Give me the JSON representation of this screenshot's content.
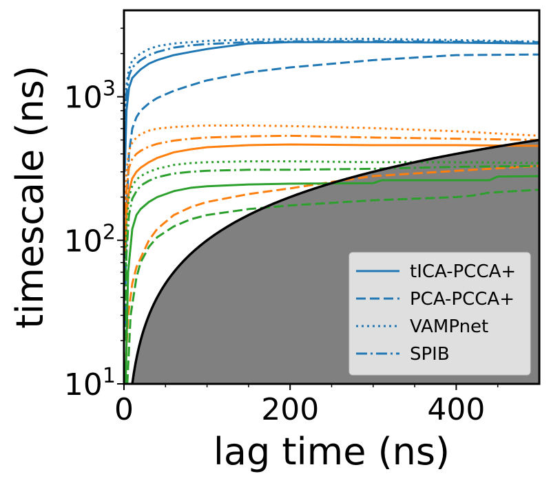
{
  "chart_data": {
    "type": "line",
    "title": "",
    "xlabel": "lag time (ns)",
    "ylabel": "timescale (ns)",
    "xlim": [
      0,
      500
    ],
    "ylim": [
      10,
      4000
    ],
    "yscale": "log",
    "xticks": [
      0,
      200,
      400
    ],
    "xtick_labels": [
      "0",
      "200",
      "400"
    ],
    "yticks": [
      10,
      100,
      1000
    ],
    "ytick_labels": [
      {
        "base": "10",
        "exp": "1"
      },
      {
        "base": "10",
        "exp": "2"
      },
      {
        "base": "10",
        "exp": "3"
      }
    ],
    "legend": {
      "position": "lower-right",
      "entries": [
        {
          "label": "tICA-PCCA+",
          "dash": "solid"
        },
        {
          "label": "PCA-PCCA+",
          "dash": "dashed"
        },
        {
          "label": "VAMPnet",
          "dash": "dotted"
        },
        {
          "label": "SPIB",
          "dash": "dashdot"
        }
      ]
    },
    "colors": {
      "blue": "#1f77b4",
      "orange": "#ff7f0e",
      "green": "#2ca02c",
      "shade": "#808080",
      "boundary": "#000000",
      "legend_bg": "#e5e5e5"
    },
    "boundary": {
      "name": "lag time = timescale",
      "x": [
        10,
        50,
        100,
        200,
        300,
        400,
        500
      ],
      "y": [
        10,
        50,
        100,
        200,
        300,
        400,
        500
      ]
    },
    "series": [
      {
        "name": "tICA-PCCA+ process 1",
        "color": "blue",
        "dash": "solid",
        "x": [
          1,
          3,
          6,
          10,
          15,
          20,
          30,
          40,
          60,
          80,
          100,
          150,
          200,
          300,
          400,
          500
        ],
        "y": [
          300,
          800,
          1150,
          1350,
          1450,
          1550,
          1700,
          1800,
          1950,
          2050,
          2150,
          2350,
          2400,
          2400,
          2380,
          2350
        ]
      },
      {
        "name": "PCA-PCCA+ process 1",
        "color": "blue",
        "dash": "dashed",
        "x": [
          1,
          3,
          6,
          10,
          15,
          20,
          30,
          40,
          60,
          80,
          100,
          150,
          200,
          300,
          400,
          500
        ],
        "y": [
          20,
          150,
          400,
          600,
          720,
          800,
          900,
          980,
          1100,
          1200,
          1300,
          1480,
          1600,
          1800,
          1950,
          1970
        ]
      },
      {
        "name": "VAMPnet process 1",
        "color": "blue",
        "dash": "dotted",
        "x": [
          1,
          3,
          6,
          10,
          15,
          20,
          30,
          40,
          60,
          80,
          100,
          150,
          200,
          300,
          400,
          500
        ],
        "y": [
          600,
          1200,
          1550,
          1800,
          1900,
          2000,
          2150,
          2250,
          2350,
          2400,
          2450,
          2500,
          2520,
          2530,
          2480,
          2420
        ]
      },
      {
        "name": "SPIB process 1",
        "color": "blue",
        "dash": "dashdot",
        "x": [
          1,
          3,
          6,
          10,
          15,
          20,
          30,
          40,
          60,
          80,
          100,
          150,
          200,
          300,
          400,
          500
        ],
        "y": [
          500,
          1050,
          1400,
          1600,
          1700,
          1800,
          1950,
          2050,
          2200,
          2280,
          2330,
          2400,
          2430,
          2440,
          2420,
          2400
        ]
      },
      {
        "name": "tICA-PCCA+ process 2",
        "color": "orange",
        "dash": "solid",
        "x": [
          1,
          3,
          6,
          10,
          15,
          20,
          30,
          40,
          60,
          80,
          100,
          150,
          200,
          300,
          400,
          500
        ],
        "y": [
          80,
          150,
          220,
          270,
          300,
          320,
          350,
          375,
          410,
          430,
          445,
          460,
          465,
          460,
          460,
          455
        ]
      },
      {
        "name": "PCA-PCCA+ process 2",
        "color": "orange",
        "dash": "dashed",
        "x": [
          1,
          5,
          10,
          15,
          20,
          30,
          40,
          60,
          80,
          100,
          150,
          200,
          250,
          300,
          400,
          500
        ],
        "y": [
          10,
          30,
          50,
          65,
          75,
          100,
          120,
          150,
          170,
          185,
          210,
          230,
          255,
          280,
          305,
          330
        ]
      },
      {
        "name": "VAMPnet process 2",
        "color": "orange",
        "dash": "dotted",
        "x": [
          1,
          3,
          6,
          10,
          15,
          20,
          30,
          40,
          60,
          80,
          100,
          150,
          200,
          300,
          400,
          500
        ],
        "y": [
          150,
          300,
          420,
          480,
          520,
          550,
          580,
          600,
          615,
          625,
          630,
          630,
          625,
          605,
          575,
          535
        ]
      },
      {
        "name": "SPIB process 2",
        "color": "orange",
        "dash": "dashdot",
        "x": [
          1,
          3,
          6,
          10,
          15,
          20,
          30,
          40,
          60,
          80,
          100,
          150,
          200,
          300,
          400,
          500
        ],
        "y": [
          110,
          220,
          320,
          370,
          400,
          420,
          450,
          470,
          495,
          510,
          520,
          530,
          535,
          520,
          510,
          500
        ]
      },
      {
        "name": "tICA-PCCA+ process 3",
        "color": "green",
        "dash": "solid",
        "x": [
          2,
          5,
          10,
          15,
          20,
          30,
          40,
          60,
          80,
          100,
          150,
          200,
          300,
          310,
          440,
          450,
          500
        ],
        "y": [
          10,
          60,
          120,
          150,
          165,
          185,
          200,
          220,
          232,
          238,
          245,
          248,
          250,
          262,
          262,
          278,
          280
        ]
      },
      {
        "name": "PCA-PCCA+ process 3",
        "color": "green",
        "dash": "dashed",
        "x": [
          4,
          8,
          15,
          20,
          30,
          40,
          60,
          80,
          100,
          150,
          200,
          300,
          400,
          420,
          440,
          500
        ],
        "y": [
          10,
          30,
          55,
          70,
          90,
          105,
          125,
          140,
          150,
          165,
          175,
          190,
          200,
          205,
          215,
          225
        ]
      },
      {
        "name": "VAMPnet process 3",
        "color": "green",
        "dash": "dotted",
        "x": [
          1,
          3,
          6,
          10,
          15,
          20,
          30,
          40,
          60,
          80,
          100,
          150,
          200,
          300,
          400,
          500
        ],
        "y": [
          40,
          120,
          200,
          240,
          265,
          280,
          300,
          315,
          335,
          345,
          350,
          355,
          355,
          350,
          350,
          345
        ]
      },
      {
        "name": "SPIB process 3",
        "color": "green",
        "dash": "dashdot",
        "x": [
          1,
          3,
          6,
          10,
          15,
          20,
          30,
          40,
          60,
          80,
          100,
          150,
          200,
          300,
          400,
          500
        ],
        "y": [
          20,
          80,
          150,
          195,
          220,
          240,
          260,
          275,
          292,
          300,
          305,
          310,
          310,
          315,
          325,
          330
        ]
      }
    ]
  }
}
